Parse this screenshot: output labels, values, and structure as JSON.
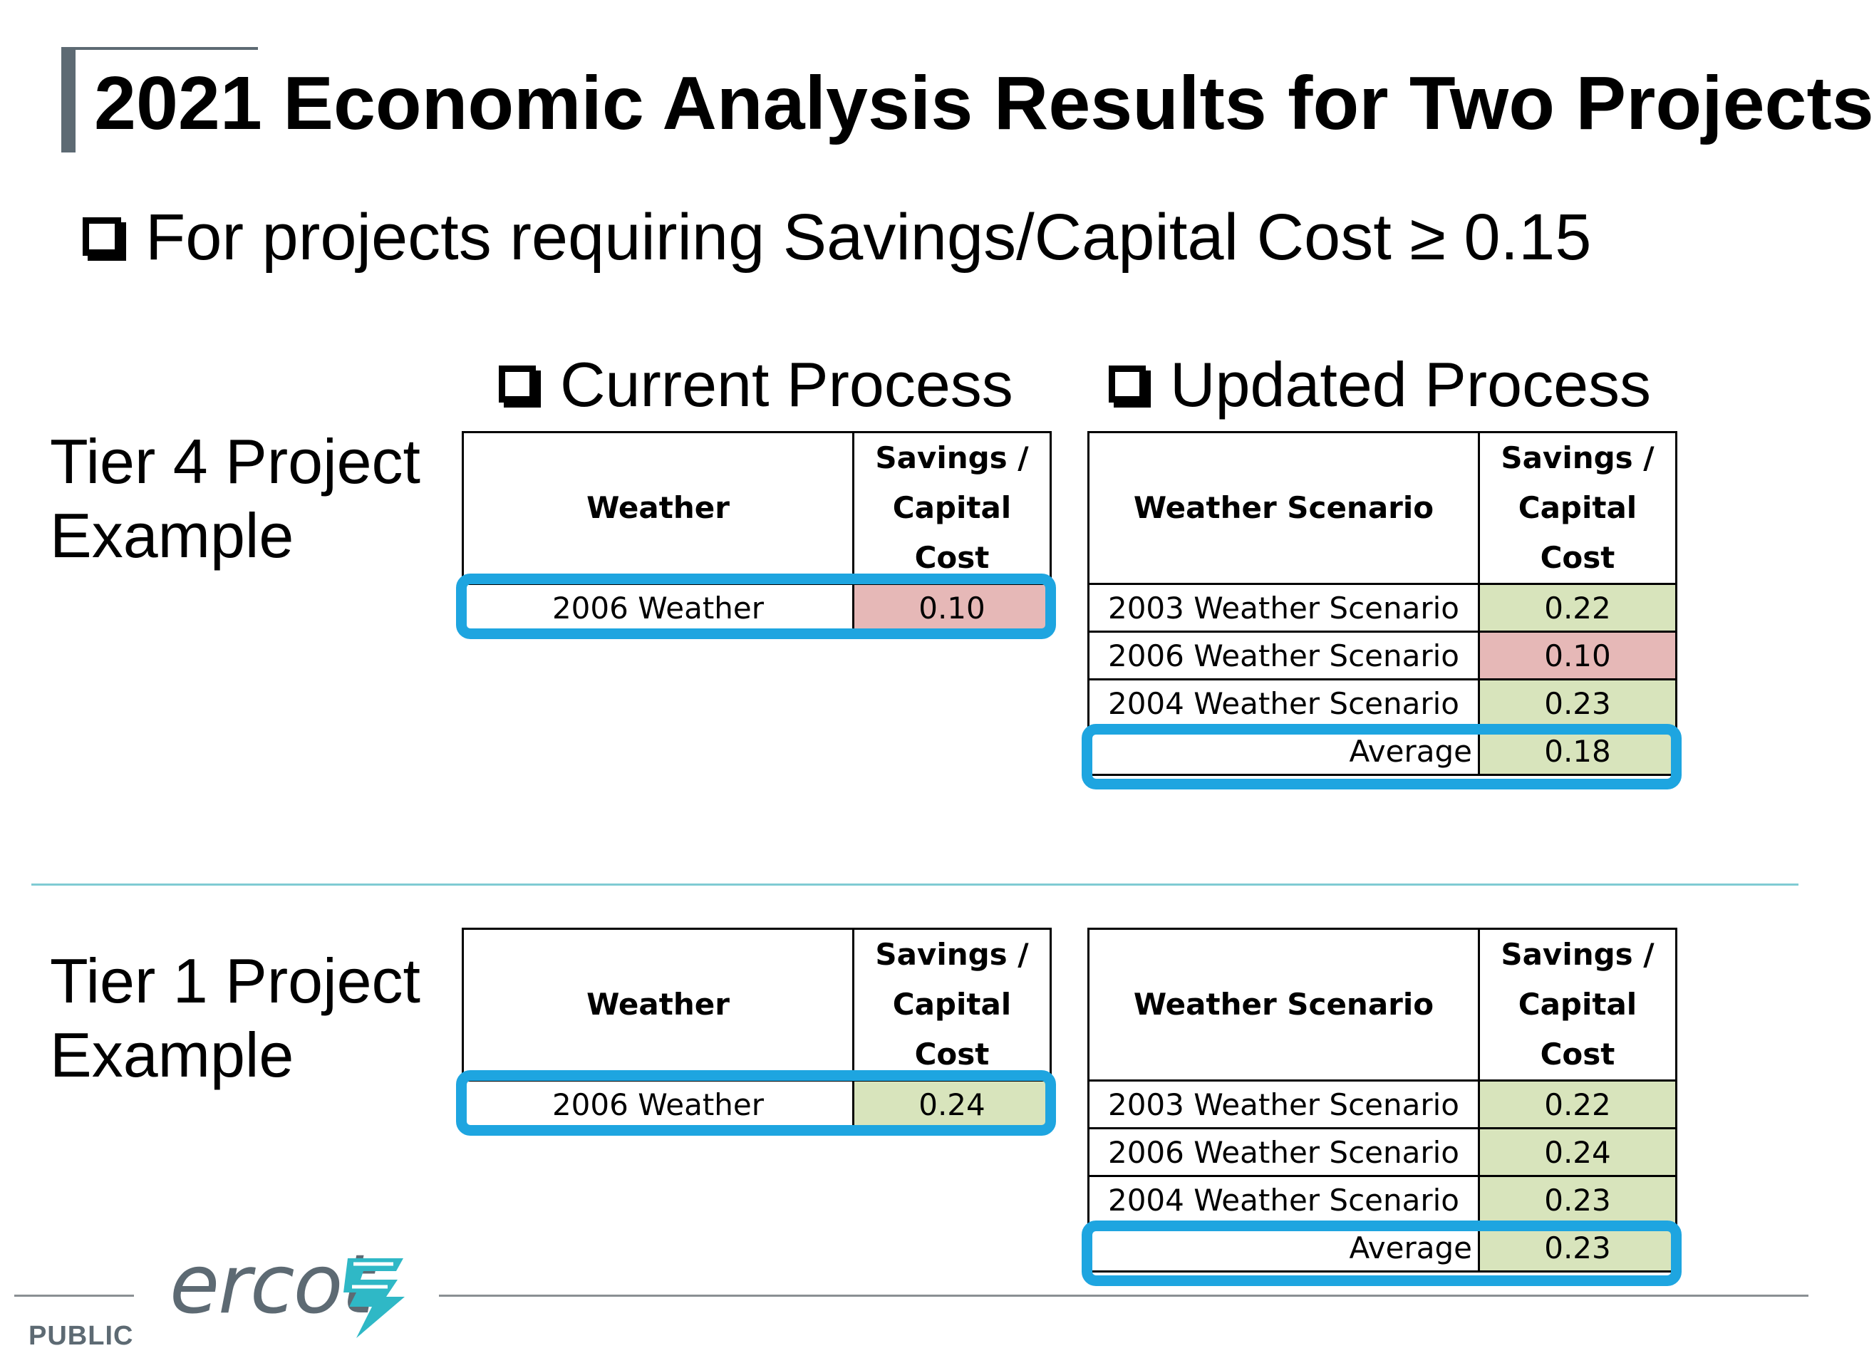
{
  "title": "2021 Economic Analysis Results for Two Projects",
  "criterion": "For projects requiring Savings/Capital Cost ≥ 0.15",
  "current_process_label": "Current Process",
  "updated_process_label": "Updated Process",
  "tiers": [
    {
      "label_line1": "Tier 4 Project",
      "label_line2": "Example",
      "current": {
        "header_col1": "Weather",
        "header_col2_line1": "Savings /",
        "header_col2_line2": "Capital Cost",
        "row": {
          "weather": "2006 Weather",
          "value": "0.10",
          "status": "below-threshold"
        }
      },
      "updated": {
        "header_col1": "Weather Scenario",
        "header_col2_line1": "Savings /",
        "header_col2_line2": "Capital Cost",
        "rows": [
          {
            "scenario": "2003 Weather Scenario",
            "value": "0.22",
            "status": "meets-threshold"
          },
          {
            "scenario": "2006 Weather Scenario",
            "value": "0.10",
            "status": "below-threshold"
          },
          {
            "scenario": "2004 Weather Scenario",
            "value": "0.23",
            "status": "meets-threshold"
          }
        ],
        "average_label": "Average",
        "average_value": "0.18"
      }
    },
    {
      "label_line1": "Tier 1 Project",
      "label_line2": "Example",
      "current": {
        "header_col1": "Weather",
        "header_col2_line1": "Savings /",
        "header_col2_line2": "Capital Cost",
        "row": {
          "weather": "2006 Weather",
          "value": "0.24",
          "status": "meets-threshold"
        }
      },
      "updated": {
        "header_col1": "Weather Scenario",
        "header_col2_line1": "Savings /",
        "header_col2_line2": "Capital Cost",
        "rows": [
          {
            "scenario": "2003 Weather Scenario",
            "value": "0.22",
            "status": "meets-threshold"
          },
          {
            "scenario": "2006 Weather Scenario",
            "value": "0.24",
            "status": "meets-threshold"
          },
          {
            "scenario": "2004 Weather Scenario",
            "value": "0.23",
            "status": "meets-threshold"
          }
        ],
        "average_label": "Average",
        "average_value": "0.23"
      }
    }
  ],
  "colors": {
    "below_threshold": "#e6b8b7",
    "meets_threshold": "#d8e4bc",
    "highlight": "#1ea5e0",
    "title_accent": "#5d6a73"
  },
  "footer": {
    "classification": "PUBLIC",
    "logo_text": "ercot",
    "logo_icon": "ercot-bolt-icon"
  }
}
